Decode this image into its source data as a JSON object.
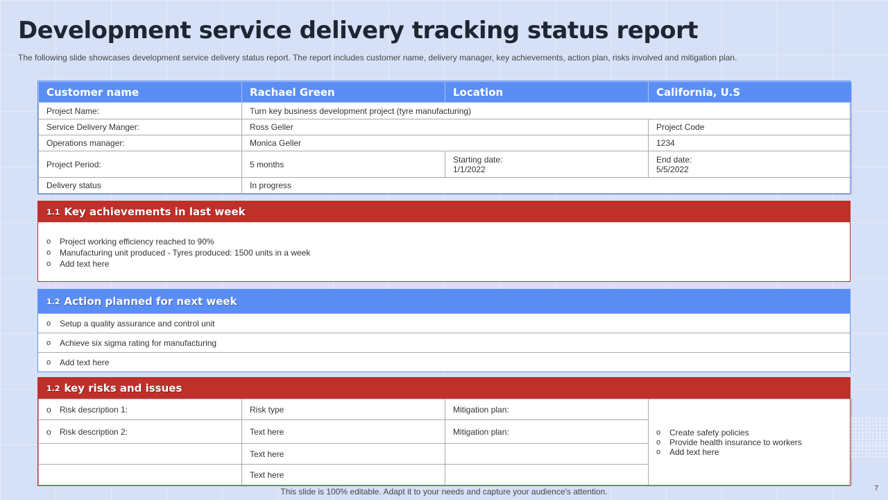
{
  "title": "Development service delivery tracking status report",
  "subtitle": "The following slide showcases development service delivery status report. The report includes customer name, delivery manager, key achievements, action plan, risks involved and mitigation plan.",
  "colors": {
    "blue": "#5b8ef5",
    "red": "#c0302b",
    "background": "#d6e1f8"
  },
  "info": {
    "header": {
      "c1": "Customer name",
      "c2": "Rachael Green",
      "c3": "Location",
      "c4": "California, U.S"
    },
    "project_name_label": "Project Name:",
    "project_name_value": "Turn key business development project (tyre manufacturing)",
    "sdm_label": "Service Delivery Manger:",
    "sdm_value": "Ross Geller",
    "project_code_label": "Project Code",
    "ops_label": "Operations manager:",
    "ops_value": "Monica Geller",
    "project_code_value": "1234",
    "period_label": "Project Period:",
    "period_value": "5 months",
    "start_label": "Starting date:",
    "start_value": "1/1/2022",
    "end_label": "End date:",
    "end_value": "5/5/2022",
    "status_label": "Delivery status",
    "status_value": "In progress"
  },
  "achievements": {
    "num": "1.1",
    "title": "Key achievements in last week",
    "items": [
      "Project working efficiency reached to 90%",
      "Manufacturing unit produced - Tyres produced: 1500 units in a week",
      "Add text here"
    ]
  },
  "actions": {
    "num": "1.2",
    "title": "Action planned for next week",
    "items": [
      "Setup a quality assurance and control unit",
      "Achieve six sigma rating for manufacturing",
      "Add text here"
    ]
  },
  "risks": {
    "num": "1.2",
    "title": "key risks and issues",
    "rows": [
      {
        "desc": "Risk description 1:",
        "type": "Risk type",
        "mit": "Mitigation plan:"
      },
      {
        "desc": "Risk description 2:",
        "type": "Text here",
        "mit": "Mitigation plan:"
      },
      {
        "desc": "",
        "type": "Text here",
        "mit": ""
      },
      {
        "desc": "",
        "type": "Text here",
        "mit": ""
      }
    ],
    "plans": [
      "Create safety policies",
      "Provide health insurance to workers",
      "Add text here"
    ]
  },
  "bullet": "o",
  "footer": "This slide is 100% editable. Adapt it to your needs and capture your audience's attention.",
  "page_number": "7"
}
